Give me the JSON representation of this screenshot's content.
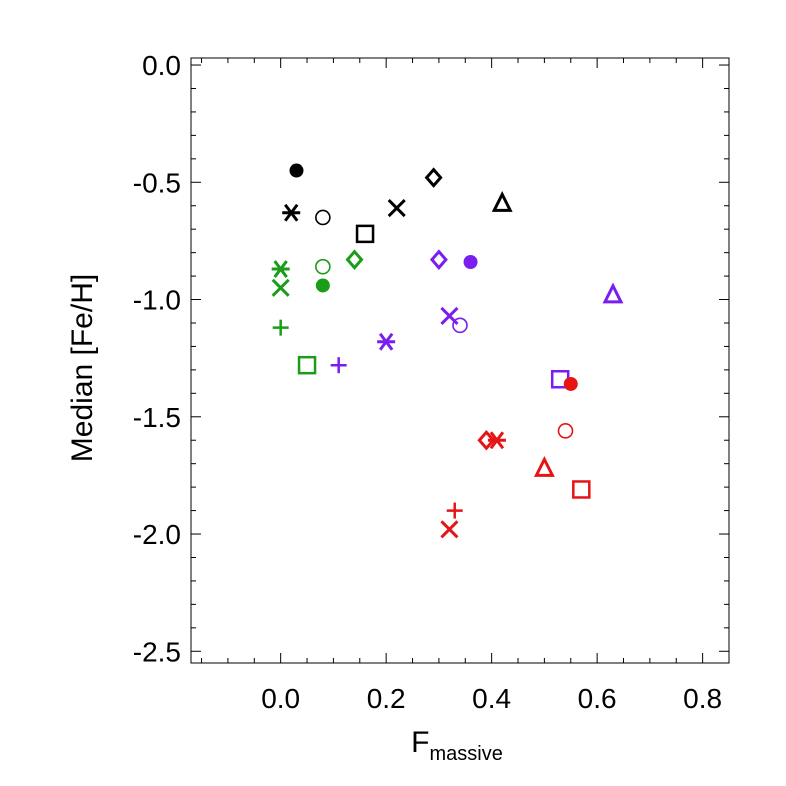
{
  "chart_data": {
    "type": "scatter",
    "title": "",
    "xlabel_main": "F",
    "xlabel_sub": "massive",
    "ylabel": "Median [Fe/H]",
    "xlim": [
      -0.17,
      0.85
    ],
    "ylim": [
      -2.55,
      0.03
    ],
    "x_ticks": [
      0.0,
      0.2,
      0.4,
      0.6,
      0.8
    ],
    "x_tick_labels": [
      "0.0",
      "0.2",
      "0.4",
      "0.6",
      "0.8"
    ],
    "x_minor_step": 0.05,
    "y_ticks": [
      0.0,
      -0.5,
      -1.0,
      -1.5,
      -2.0,
      -2.5
    ],
    "y_tick_labels": [
      "0.0",
      "-0.5",
      "-1.0",
      "-1.5",
      "-2.0",
      "-2.5"
    ],
    "y_minor_step": 0.1,
    "grid": false,
    "colors": {
      "black": "#000000",
      "green": "#1a9e1a",
      "purple": "#7a1ef0",
      "red": "#e61414"
    },
    "points": [
      {
        "x": 0.03,
        "y": -0.45,
        "marker": "filled-circle",
        "color": "black"
      },
      {
        "x": 0.02,
        "y": -0.63,
        "marker": "asterisk",
        "color": "black"
      },
      {
        "x": 0.08,
        "y": -0.65,
        "marker": "open-circle",
        "color": "black"
      },
      {
        "x": 0.16,
        "y": -0.72,
        "marker": "square",
        "color": "black"
      },
      {
        "x": 0.22,
        "y": -0.61,
        "marker": "x",
        "color": "black"
      },
      {
        "x": 0.29,
        "y": -0.48,
        "marker": "diamond",
        "color": "black"
      },
      {
        "x": 0.42,
        "y": -0.59,
        "marker": "triangle",
        "color": "black"
      },
      {
        "x": 0.0,
        "y": -0.87,
        "marker": "asterisk",
        "color": "green"
      },
      {
        "x": 0.0,
        "y": -0.95,
        "marker": "x",
        "color": "green"
      },
      {
        "x": 0.08,
        "y": -0.86,
        "marker": "open-circle",
        "color": "green"
      },
      {
        "x": 0.08,
        "y": -0.94,
        "marker": "filled-circle",
        "color": "green"
      },
      {
        "x": 0.14,
        "y": -0.83,
        "marker": "diamond",
        "color": "green"
      },
      {
        "x": 0.0,
        "y": -1.12,
        "marker": "plus",
        "color": "green"
      },
      {
        "x": 0.05,
        "y": -1.28,
        "marker": "square",
        "color": "green"
      },
      {
        "x": 0.3,
        "y": -0.83,
        "marker": "diamond",
        "color": "purple"
      },
      {
        "x": 0.36,
        "y": -0.84,
        "marker": "filled-circle",
        "color": "purple"
      },
      {
        "x": 0.63,
        "y": -0.98,
        "marker": "triangle",
        "color": "purple"
      },
      {
        "x": 0.32,
        "y": -1.07,
        "marker": "x",
        "color": "purple"
      },
      {
        "x": 0.34,
        "y": -1.11,
        "marker": "open-circle",
        "color": "purple"
      },
      {
        "x": 0.2,
        "y": -1.18,
        "marker": "asterisk",
        "color": "purple"
      },
      {
        "x": 0.11,
        "y": -1.28,
        "marker": "plus",
        "color": "purple"
      },
      {
        "x": 0.53,
        "y": -1.34,
        "marker": "square",
        "color": "purple"
      },
      {
        "x": 0.55,
        "y": -1.36,
        "marker": "filled-circle",
        "color": "red"
      },
      {
        "x": 0.54,
        "y": -1.56,
        "marker": "open-circle",
        "color": "red"
      },
      {
        "x": 0.39,
        "y": -1.6,
        "marker": "diamond",
        "color": "red"
      },
      {
        "x": 0.41,
        "y": -1.6,
        "marker": "asterisk",
        "color": "red"
      },
      {
        "x": 0.5,
        "y": -1.72,
        "marker": "triangle",
        "color": "red"
      },
      {
        "x": 0.57,
        "y": -1.81,
        "marker": "square",
        "color": "red"
      },
      {
        "x": 0.33,
        "y": -1.9,
        "marker": "plus",
        "color": "red"
      },
      {
        "x": 0.32,
        "y": -1.98,
        "marker": "x",
        "color": "red"
      }
    ]
  }
}
